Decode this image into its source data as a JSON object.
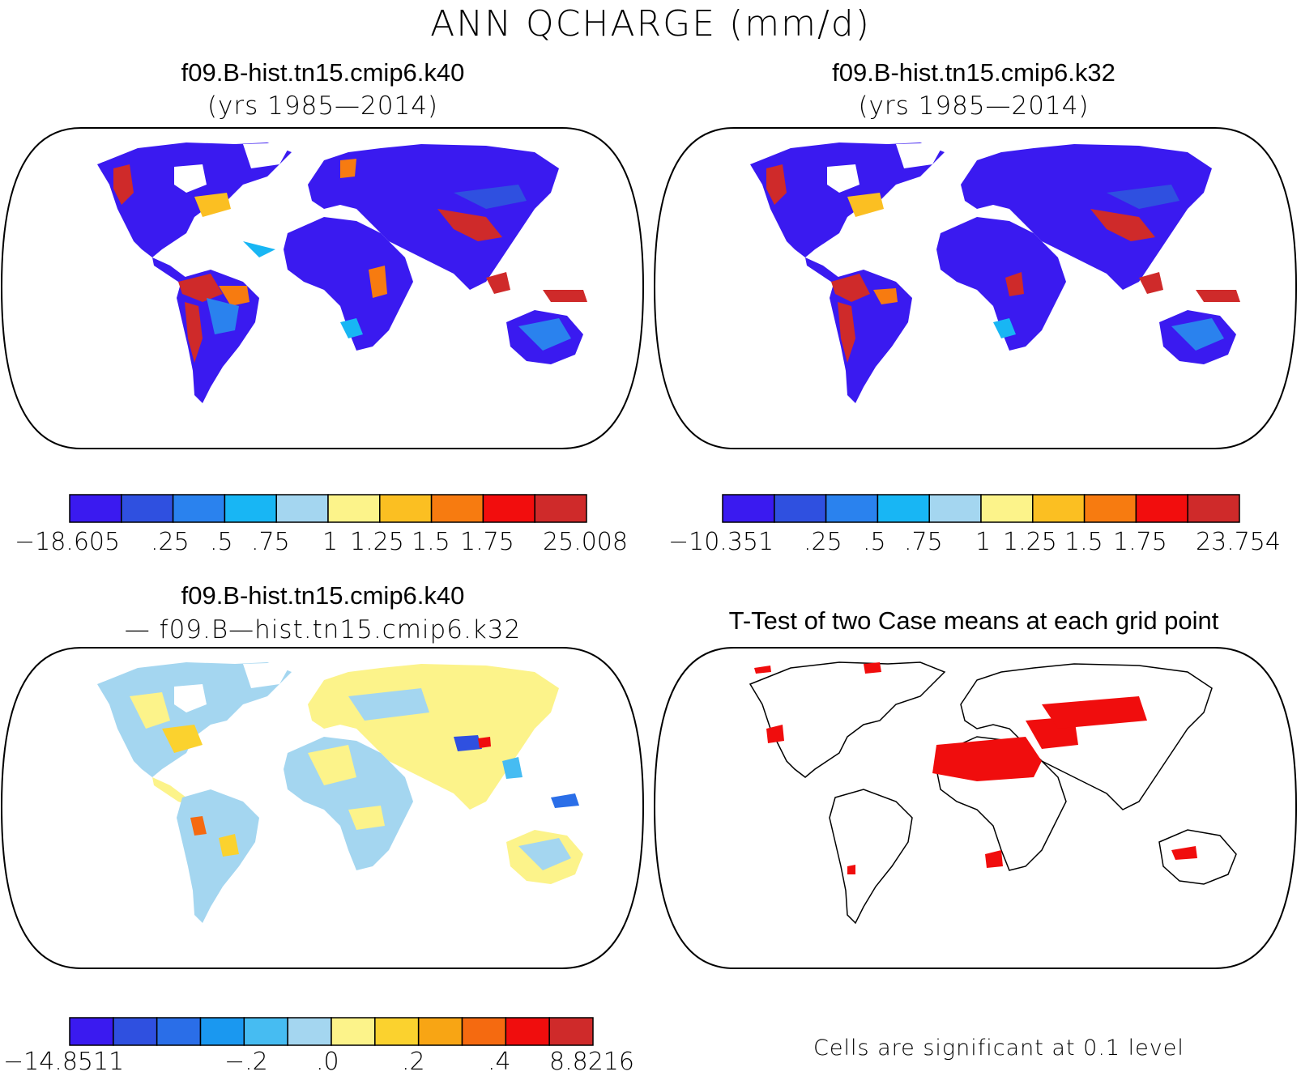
{
  "figure": {
    "title": "ANN QCHARGE (mm/d)"
  },
  "panels": [
    {
      "title": "f09.B-hist.tn15.cmip6.k40",
      "subtitle": "(yrs 1985—2014)",
      "colorbar": {
        "colors": [
          "#3a1af0",
          "#2f50e0",
          "#2a82ee",
          "#18b6f4",
          "#a4d6f0",
          "#fcf38a",
          "#fbbf22",
          "#f77b10",
          "#f20d0d",
          "#cf2a2a"
        ],
        "labels": [
          "−18.605",
          ".25",
          ".5",
          ".75",
          "1",
          "1.25",
          "1.5",
          "1.75",
          "25.008"
        ]
      }
    },
    {
      "title": "f09.B-hist.tn15.cmip6.k32",
      "subtitle": "(yrs 1985—2014)",
      "colorbar": {
        "colors": [
          "#3a1af0",
          "#2f50e0",
          "#2a82ee",
          "#18b6f4",
          "#a4d6f0",
          "#fcf38a",
          "#fbbf22",
          "#f77b10",
          "#f20d0d",
          "#cf2a2a"
        ],
        "labels": [
          "−10.351",
          ".25",
          ".5",
          ".75",
          "1",
          "1.25",
          "1.5",
          "1.75",
          "23.754"
        ]
      }
    },
    {
      "title": "f09.B-hist.tn15.cmip6.k40",
      "subtitle": "— f09.B—hist.tn15.cmip6.k32",
      "colorbar": {
        "colors": [
          "#3a1af0",
          "#2f50e0",
          "#2a6ee8",
          "#1a98f0",
          "#46bcf2",
          "#a4d6f0",
          "#fcf38a",
          "#fbd22e",
          "#f8a514",
          "#f56a10",
          "#f00d0d",
          "#cf2a2a"
        ],
        "labels": [
          "−14.8511",
          "−.2",
          ".0",
          ".2",
          ".4",
          "8.8216"
        ]
      }
    },
    {
      "title": "T-Test of two Case means at each grid point",
      "footnote": "Cells are significant at 0.1 level"
    }
  ]
}
